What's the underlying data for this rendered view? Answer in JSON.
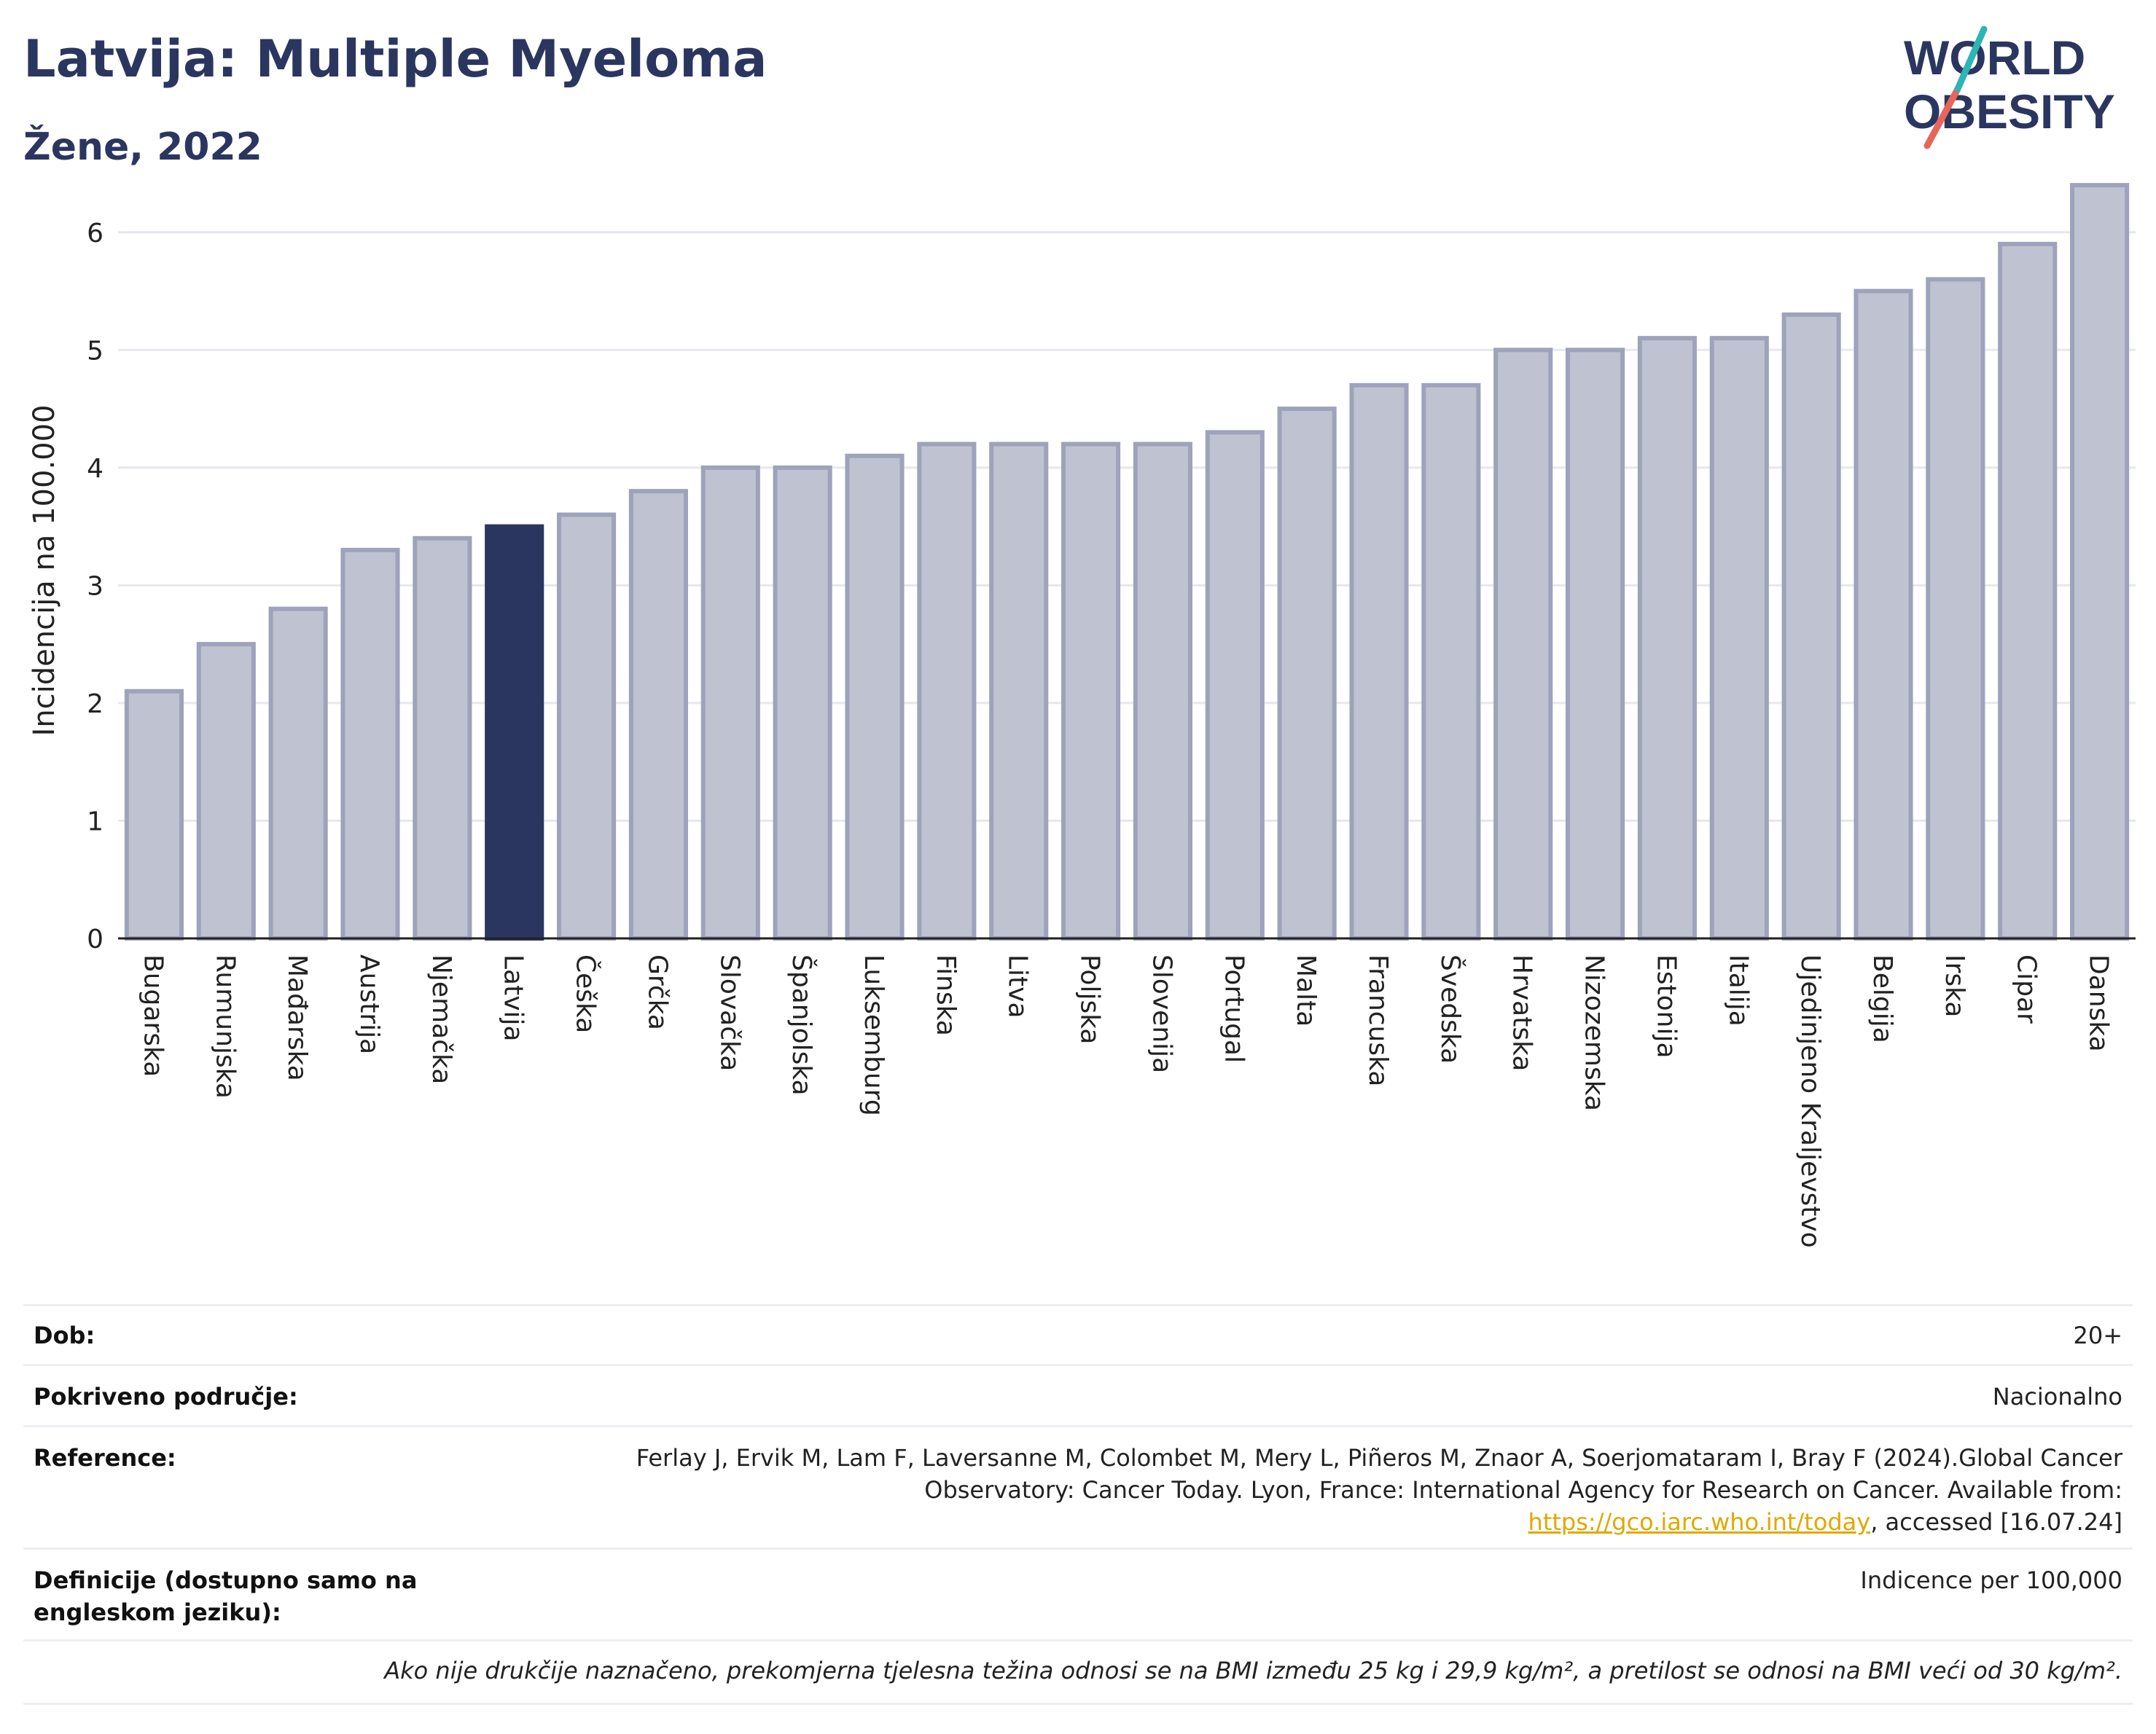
{
  "header": {
    "title": "Latvija: Multiple Myeloma",
    "subtitle": "Žene, 2022"
  },
  "logo": {
    "line1": "WORLD",
    "line2": "OBESITY",
    "text_color": "#2b3660",
    "slash_colors": [
      "#2bb5b3",
      "#e8655a"
    ]
  },
  "chart_data": {
    "type": "bar",
    "title": "Latvija: Multiple Myeloma",
    "subtitle": "Žene, 2022",
    "xlabel": "",
    "ylabel": "Incidencija na 100.000",
    "ylim": [
      0,
      6.5
    ],
    "yticks": [
      0,
      1,
      2,
      3,
      4,
      5,
      6
    ],
    "grid": true,
    "highlight": "Latvija",
    "colors": {
      "default_fill": "#bfc2d0",
      "default_stroke": "#9ea3bb",
      "highlight_fill": "#2b3660",
      "grid": "#e6e8ee",
      "axis": "#222222"
    },
    "categories": [
      "Bugarska",
      "Rumunjska",
      "Mađarska",
      "Austrija",
      "Njemačka",
      "Latvija",
      "Češka",
      "Grčka",
      "Slovačka",
      "Španjolska",
      "Luksemburg",
      "Finska",
      "Litva",
      "Poljska",
      "Slovenija",
      "Portugal",
      "Malta",
      "Francuska",
      "Švedska",
      "Hrvatska",
      "Nizozemska",
      "Estonija",
      "Italija",
      "Ujedinjeno Kraljevstvo",
      "Belgija",
      "Irska",
      "Cipar",
      "Danska"
    ],
    "values": [
      2.1,
      2.5,
      2.8,
      3.3,
      3.4,
      3.5,
      3.6,
      3.8,
      4.0,
      4.0,
      4.1,
      4.2,
      4.2,
      4.2,
      4.2,
      4.3,
      4.5,
      4.7,
      4.7,
      5.0,
      5.0,
      5.1,
      5.1,
      5.3,
      5.5,
      5.6,
      5.9,
      6.4
    ]
  },
  "meta": {
    "age_label": "Dob:",
    "age_value": "20+",
    "coverage_label": "Pokriveno područje:",
    "coverage_value": "Nacionalno",
    "reference_label": "Reference:",
    "reference_text1": "Ferlay J, Ervik M, Lam F, Laversanne M, Colombet M, Mery L, Piñeros M, Znaor A, Soerjomataram I, Bray F (2024).Global Cancer Observatory: Cancer Today. Lyon, France: International Agency for Research on Cancer. Available from:",
    "reference_link": "https://gco.iarc.who.int/today",
    "reference_text2": ", accessed [16.07.24]",
    "definitions_label": "Definicije (dostupno samo na engleskom jeziku):",
    "definitions_value": "Indicence per 100,000",
    "footnote": "Ako nije drukčije naznačeno, prekomjerna tjelesna težina odnosi se na BMI između 25 kg i 29,9 kg/m², a pretilost se odnosi na BMI veći od 30 kg/m²."
  }
}
